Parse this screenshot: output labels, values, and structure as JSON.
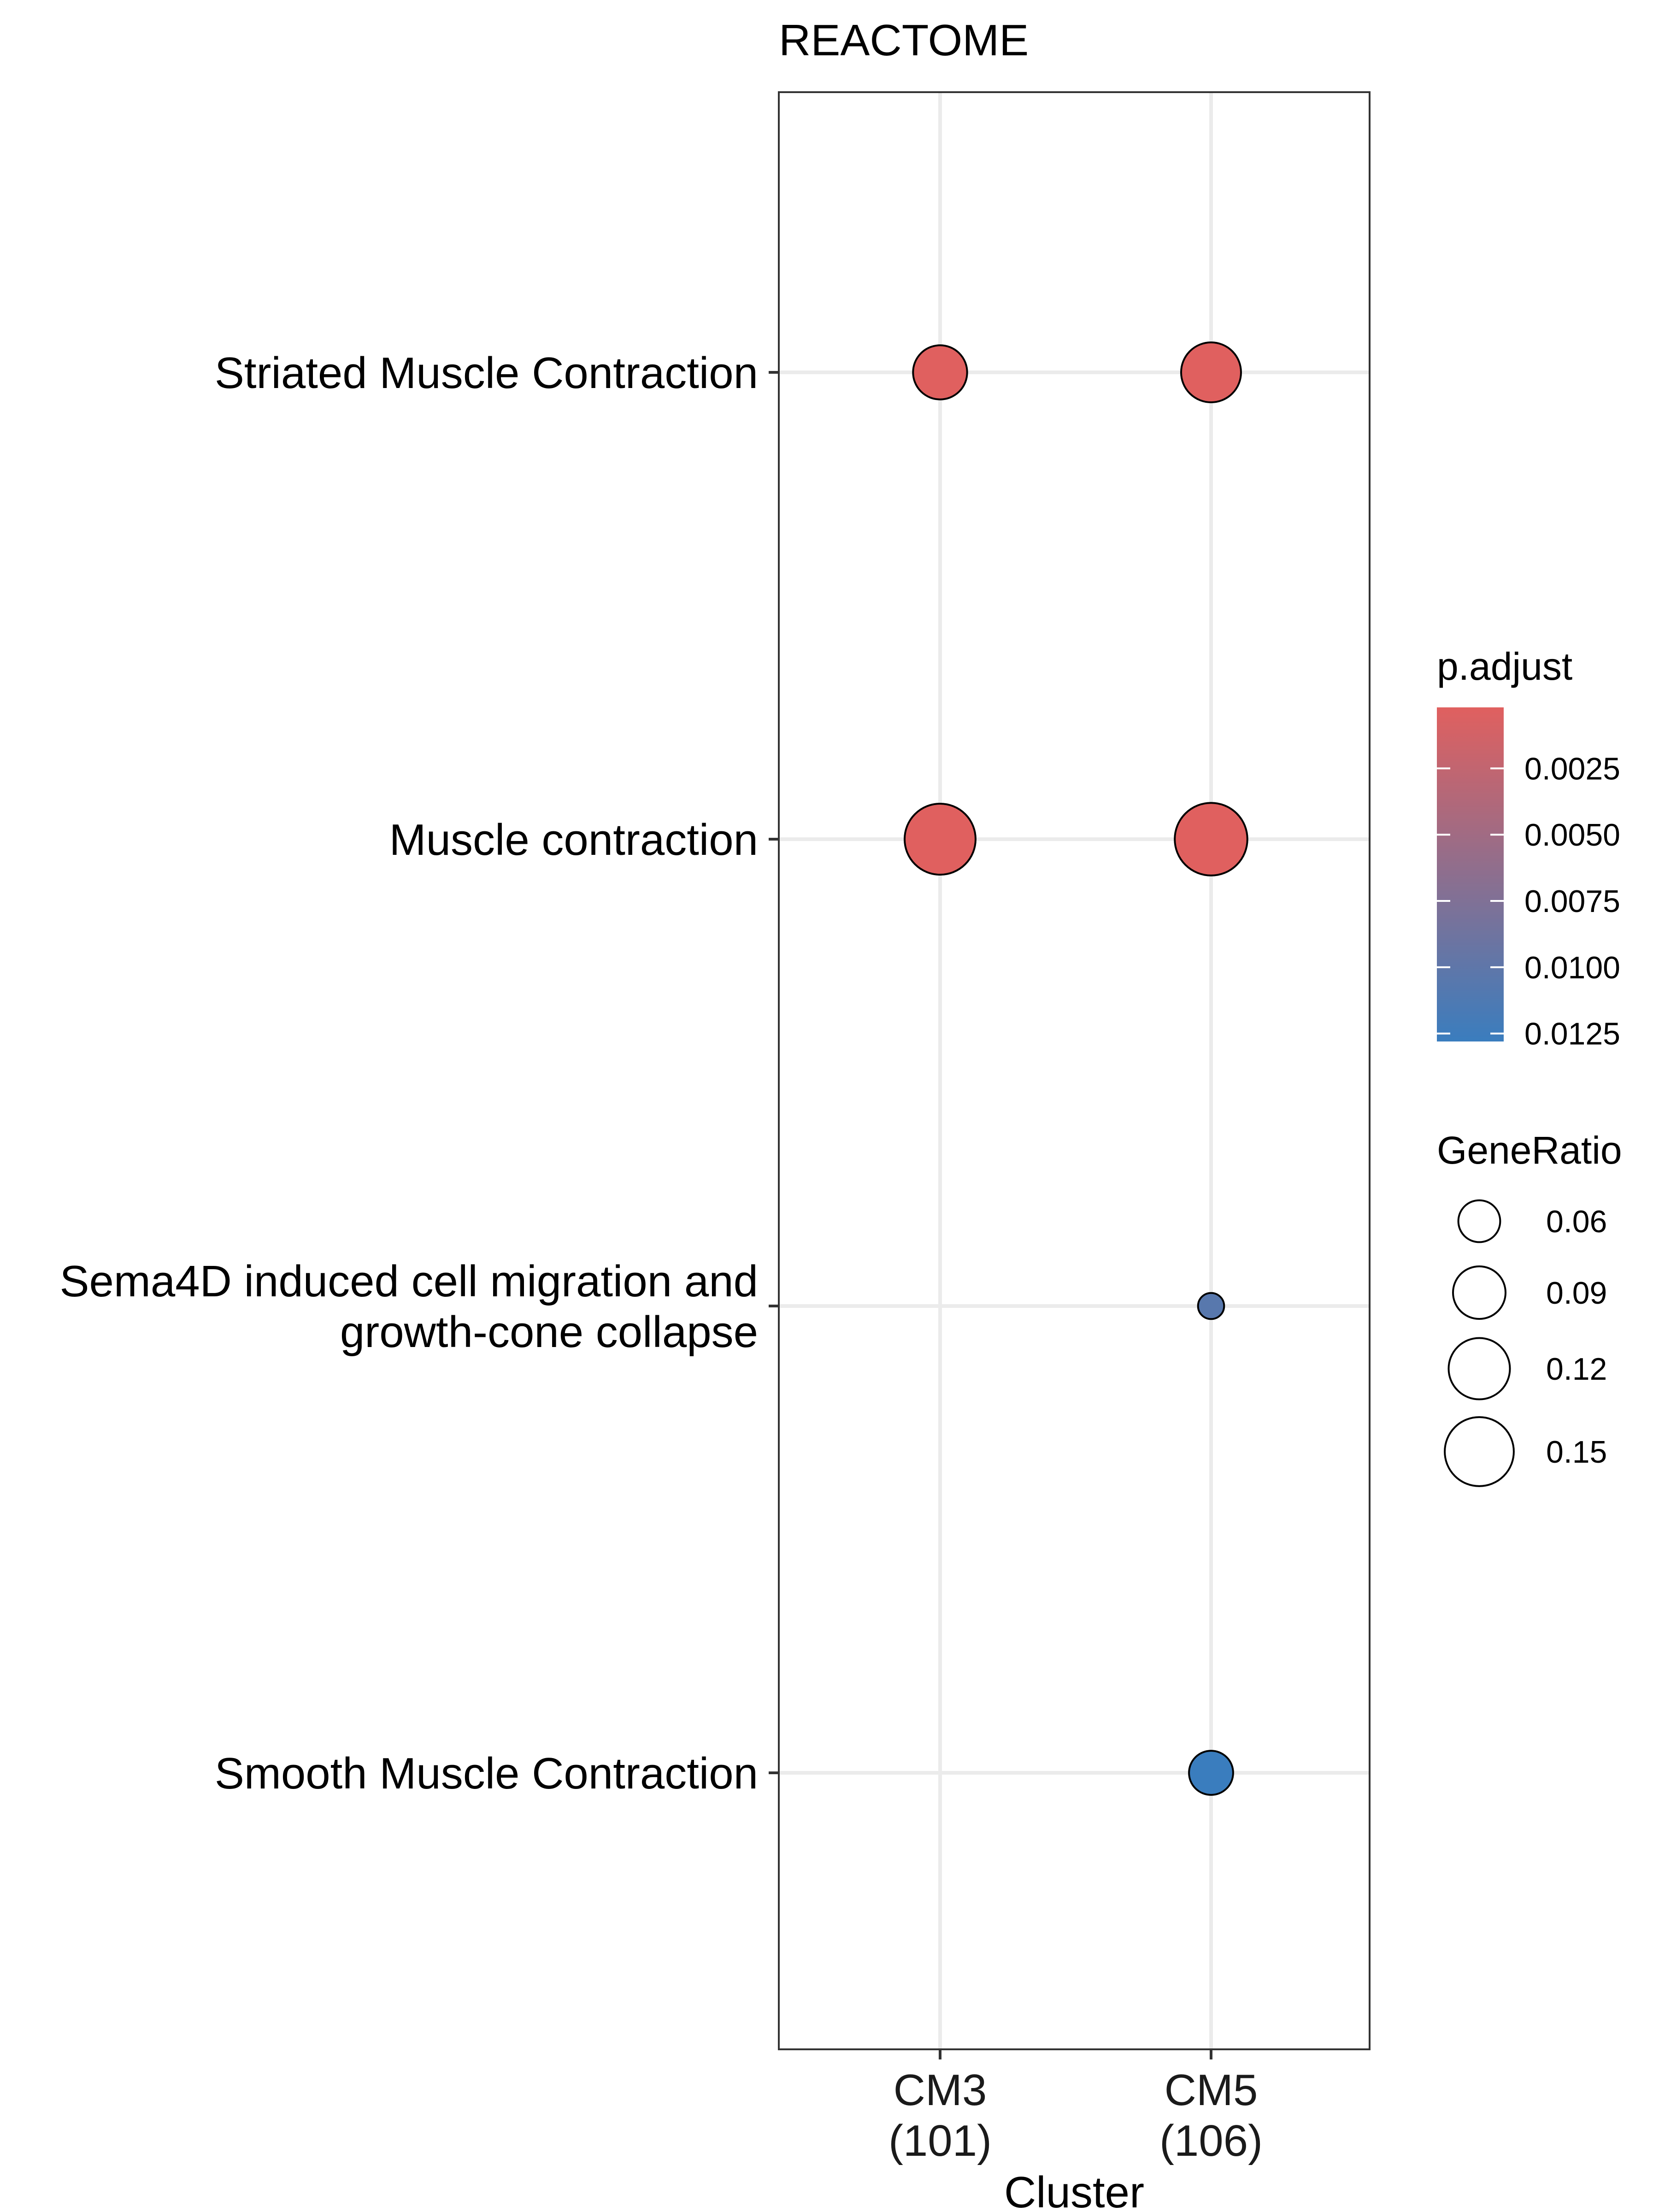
{
  "chart_data": {
    "type": "scatter",
    "title": "REACTOME",
    "xlabel": "Cluster",
    "ylabel": "",
    "x_categories": [
      {
        "line1": "CM3",
        "line2": "(101)"
      },
      {
        "line1": "CM5",
        "line2": "(106)"
      }
    ],
    "y_categories": [
      {
        "lines": [
          "Striated Muscle Contraction"
        ]
      },
      {
        "lines": [
          "Muscle contraction"
        ]
      },
      {
        "lines": [
          "Sema4D induced cell migration and",
          "growth-cone collapse"
        ]
      },
      {
        "lines": [
          "Smooth Muscle Contraction"
        ]
      }
    ],
    "points": [
      {
        "x": 0,
        "y": 0,
        "gene_ratio": 0.095,
        "p_adjust": 0.0002
      },
      {
        "x": 1,
        "y": 0,
        "gene_ratio": 0.115,
        "p_adjust": 0.0002
      },
      {
        "x": 0,
        "y": 1,
        "gene_ratio": 0.158,
        "p_adjust": 0.0002
      },
      {
        "x": 1,
        "y": 1,
        "gene_ratio": 0.165,
        "p_adjust": 0.0002
      },
      {
        "x": 1,
        "y": 2,
        "gene_ratio": 0.028,
        "p_adjust": 0.0105
      },
      {
        "x": 1,
        "y": 3,
        "gene_ratio": 0.066,
        "p_adjust": 0.0128
      }
    ],
    "color_legend": {
      "title": "p.adjust",
      "range": [
        0.0002,
        0.0128
      ],
      "low_color": "#e0605f",
      "high_color": "#3a7dbe",
      "ticks": [
        {
          "value": 0.0025,
          "label": "0.0025"
        },
        {
          "value": 0.005,
          "label": "0.0050"
        },
        {
          "value": 0.0075,
          "label": "0.0075"
        },
        {
          "value": 0.01,
          "label": "0.0100"
        },
        {
          "value": 0.0125,
          "label": "0.0125"
        }
      ]
    },
    "size_legend": {
      "title": "GeneRatio",
      "breaks": [
        {
          "value": 0.06,
          "label": "0.06"
        },
        {
          "value": 0.09,
          "label": "0.09"
        },
        {
          "value": 0.12,
          "label": "0.12"
        },
        {
          "value": 0.15,
          "label": "0.15"
        }
      ]
    },
    "grid": true,
    "legend_position": "right"
  }
}
